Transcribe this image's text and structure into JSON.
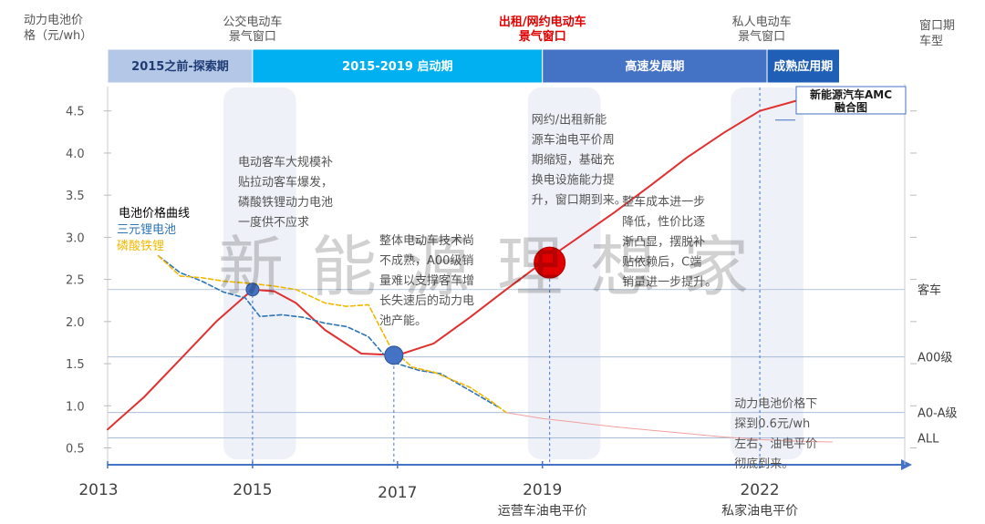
{
  "chart_data": {
    "type": "line",
    "y_axis_title": [
      "动力电池价",
      "格（元/wh）"
    ],
    "right_axis_title": [
      "窗口期",
      "车型"
    ],
    "yticks": [
      "4.5",
      "4.0",
      "3.5",
      "3.0",
      "2.5",
      "2.0",
      "1.5",
      "1.0",
      "0.5"
    ],
    "ylim": [
      0.3,
      4.8
    ],
    "xlim": [
      2013,
      2024
    ],
    "years": [
      "2013",
      "2015",
      "2017",
      "2019",
      "2022"
    ],
    "year_captions": [
      {
        "year": 2019,
        "text": "运营车油电平价"
      },
      {
        "year": 2022,
        "text": "私家油电平价"
      }
    ],
    "top_headers": [
      {
        "year": 2015,
        "lines": [
          "公交电动车",
          "景气窗口"
        ],
        "emphasis": false
      },
      {
        "year": 2019,
        "lines": [
          "出租/网约电动车",
          "景气窗口"
        ],
        "emphasis": true
      },
      {
        "year": 2022,
        "lines": [
          "私人电动车",
          "景气窗口"
        ],
        "emphasis": false
      }
    ],
    "phases": [
      {
        "label": "2015之前-探索期",
        "from": 2013,
        "to": 2015,
        "color": "#b4c7e7"
      },
      {
        "label": "2015-2019 启动期",
        "from": 2015,
        "to": 2019,
        "color": "#00b0f0"
      },
      {
        "label": "高速发展期",
        "from": 2019,
        "to": 2022.1,
        "color": "#4472c4"
      },
      {
        "label": "成熟应用期",
        "from": 2022.1,
        "to": 2023.1,
        "color": "#1f5fb5"
      }
    ],
    "windows": [
      {
        "from": 2014.6,
        "to": 2015.6
      },
      {
        "from": 2018.8,
        "to": 2019.8
      },
      {
        "from": 2021.6,
        "to": 2022.6
      }
    ],
    "thresholds": [
      {
        "label": "客车",
        "value": 2.38
      },
      {
        "label": "A00级",
        "value": 1.58
      },
      {
        "label": "A0-A级",
        "value": 0.92
      },
      {
        "label": "ALL",
        "value": 0.62
      }
    ],
    "series": [
      {
        "name": "电池价格曲线",
        "color": "#e03030",
        "style": "solid",
        "x": [
          2013,
          2013.5,
          2014,
          2014.5,
          2015,
          2015.3,
          2015.6,
          2016,
          2016.5,
          2017,
          2017.5,
          2018,
          2018.5,
          2019,
          2019.5,
          2020,
          2020.5,
          2021,
          2021.5,
          2022,
          2022.5,
          2023
        ],
        "y": [
          0.72,
          1.1,
          1.55,
          2.0,
          2.38,
          2.36,
          2.22,
          1.9,
          1.62,
          1.6,
          1.74,
          2.05,
          2.38,
          2.7,
          3.0,
          3.3,
          3.62,
          3.95,
          4.24,
          4.5,
          4.62,
          4.64
        ]
      },
      {
        "name": "三元锂电池",
        "color": "#2e75b6",
        "style": "dashed",
        "x": [
          2013.7,
          2014,
          2014.3,
          2014.6,
          2014.9,
          2015.1,
          2015.4,
          2015.7,
          2016,
          2016.3,
          2016.6,
          2016.8,
          2017,
          2017.3,
          2017.6,
          2018,
          2018.4
        ],
        "y": [
          2.78,
          2.58,
          2.48,
          2.35,
          2.28,
          2.06,
          2.08,
          2.05,
          1.98,
          1.94,
          1.82,
          1.62,
          1.5,
          1.42,
          1.38,
          1.18,
          0.98
        ]
      },
      {
        "name": "磷酸铁锂",
        "color": "#f2b800",
        "style": "dashed",
        "x": [
          2013.7,
          2014,
          2014.3,
          2014.6,
          2015,
          2015.3,
          2015.6,
          2016,
          2016.3,
          2016.6,
          2016.9,
          2017.2,
          2017.5,
          2018,
          2018.3,
          2018.5
        ],
        "y": [
          2.78,
          2.54,
          2.52,
          2.48,
          2.45,
          2.42,
          2.38,
          2.22,
          2.18,
          2.2,
          1.7,
          1.46,
          1.4,
          1.22,
          1.05,
          0.92
        ]
      },
      {
        "name": "",
        "color": "#f2a0a0",
        "style": "thin",
        "x": [
          2018.5,
          2019,
          2019.5,
          2020,
          2020.5,
          2021,
          2021.5,
          2022,
          2022.5,
          2023
        ],
        "y": [
          0.92,
          0.85,
          0.8,
          0.75,
          0.71,
          0.67,
          0.63,
          0.6,
          0.58,
          0.57
        ]
      }
    ],
    "markers": [
      {
        "x": 2015,
        "y": 2.38,
        "color": "#4472c4",
        "size": "small"
      },
      {
        "x": 2016.95,
        "y": 1.6,
        "color": "#4472c4",
        "size": "medium"
      },
      {
        "x": 2019.1,
        "y": 2.7,
        "color": "#e00000",
        "size": "large"
      }
    ],
    "annotations": [
      {
        "anchor": [
          2014.8,
          3.85
        ],
        "lines": [
          "电动客车大规模补",
          "贴拉动客车爆发，",
          "磷酸铁锂动力电池",
          "一度供不应求"
        ]
      },
      {
        "anchor": [
          2016.75,
          2.92
        ],
        "lines": [
          "整体电动车技术尚",
          "不成熟，A00级销",
          "量难以支撑客车增",
          "长失速后的动力电",
          "池产能。"
        ]
      },
      {
        "anchor": [
          2018.85,
          4.35
        ],
        "lines": [
          "网约/出租新能",
          "源车油电平价周",
          "期缩短，基础充",
          "换电设施能力提",
          "升，窗口期到来。"
        ]
      },
      {
        "anchor": [
          2020.1,
          3.38
        ],
        "lines": [
          "整车成本进一步",
          "降低，性价比逐",
          "渐凸显，摆脱补",
          "贴依赖后，C端",
          "销量进一步提升。"
        ]
      },
      {
        "anchor": [
          2021.65,
          0.98
        ],
        "lines": [
          "动力电池价格下",
          "探到0.6元/wh",
          "左右，油电平价",
          "彻底到来。"
        ]
      }
    ],
    "amc_box": [
      "新能源汽车AMC",
      "融合图"
    ],
    "watermark": "新能源理想家"
  }
}
